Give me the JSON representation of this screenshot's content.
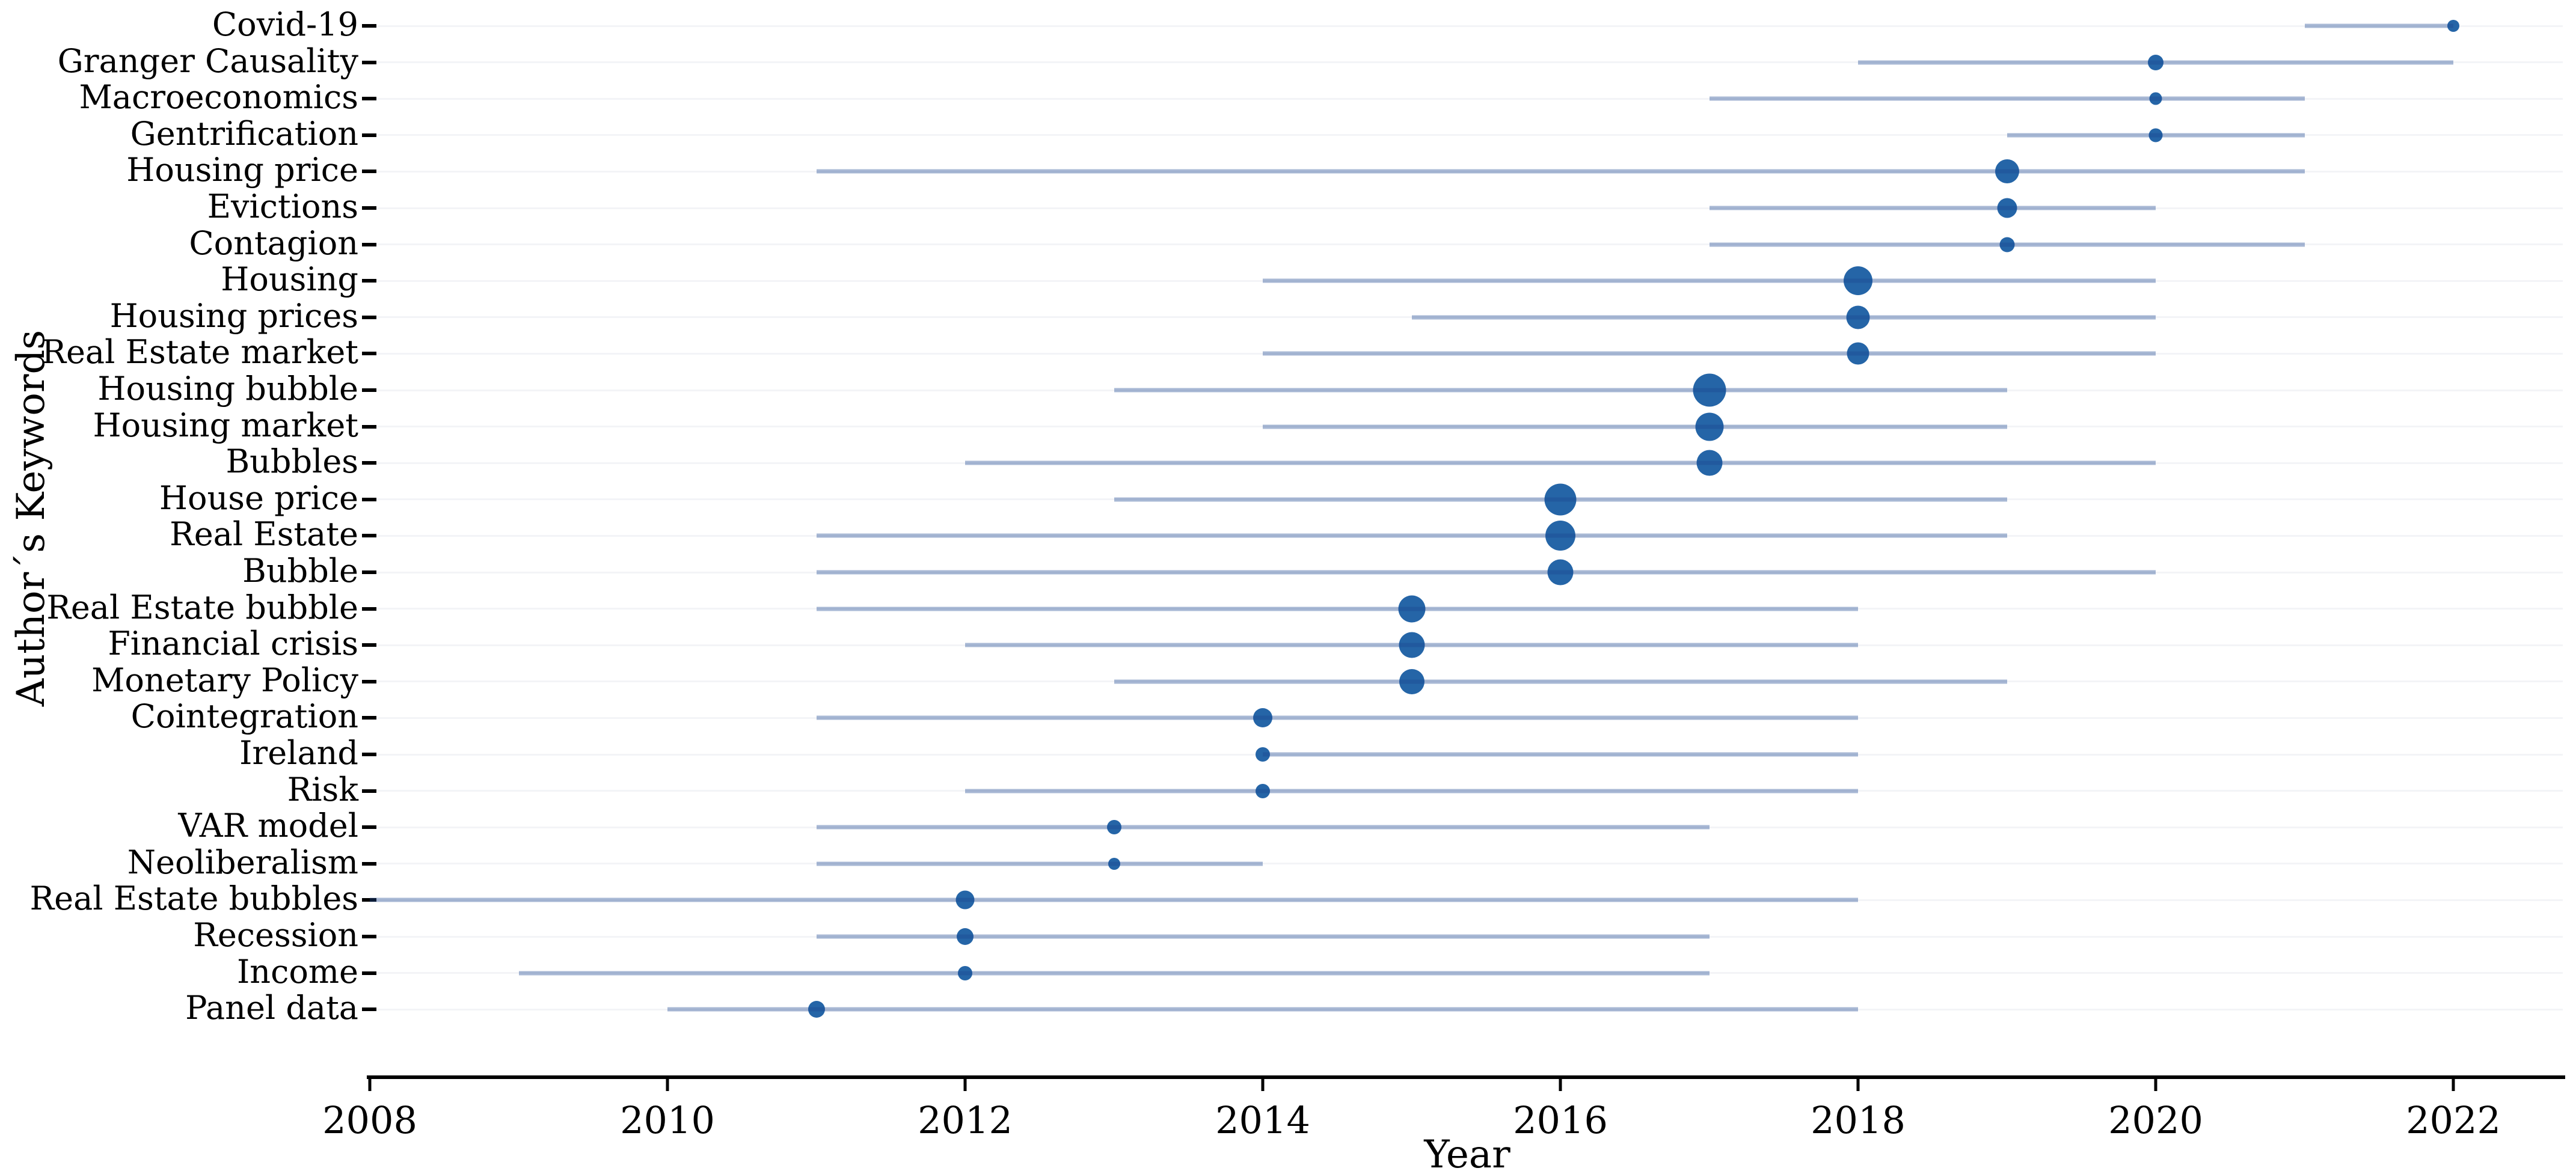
{
  "figure": {
    "x_axis_title": "Year",
    "y_axis_title": "Author´s Keywords"
  },
  "style": {
    "background_color": "#ffffff",
    "dot_color": "#2565A7",
    "line_color": "#1C4690",
    "line_opacity": 0.38,
    "axis_color": "#000000",
    "gridline_color": "#f3f4f7",
    "text_color": "#000000"
  },
  "chart_data": {
    "type": "scatter",
    "subtype": "trend-topics-dot-range-timeline",
    "title": "",
    "xlabel": "Year",
    "ylabel": "Author´s Keywords",
    "xlim": [
      2007.5,
      2022.8
    ],
    "x_ticks": [
      "2008",
      "2010",
      "2012",
      "2014",
      "2016",
      "2018",
      "2020",
      "2022"
    ],
    "grid": "faint horizontal row guides",
    "legend": "none",
    "size_note": "dot_size_px is the rendered bubble diameter; larger dot = higher keyword frequency",
    "keywords": [
      {
        "label": "Covid-19",
        "year_start": 2021,
        "year_end": 2022,
        "peak_year": 2022,
        "dot_size_px": 20
      },
      {
        "label": "Granger Causality",
        "year_start": 2018,
        "year_end": 2022,
        "peak_year": 2020,
        "dot_size_px": 26
      },
      {
        "label": "Macroeconomics",
        "year_start": 2017,
        "year_end": 2021,
        "peak_year": 2020,
        "dot_size_px": 21
      },
      {
        "label": "Gentrification",
        "year_start": 2019,
        "year_end": 2021,
        "peak_year": 2020,
        "dot_size_px": 23
      },
      {
        "label": "Housing price",
        "year_start": 2011,
        "year_end": 2021,
        "peak_year": 2019,
        "dot_size_px": 40
      },
      {
        "label": "Evictions",
        "year_start": 2017,
        "year_end": 2020,
        "peak_year": 2019,
        "dot_size_px": 33
      },
      {
        "label": "Contagion",
        "year_start": 2017,
        "year_end": 2021,
        "peak_year": 2019,
        "dot_size_px": 25
      },
      {
        "label": "Housing",
        "year_start": 2014,
        "year_end": 2020,
        "peak_year": 2018,
        "dot_size_px": 48
      },
      {
        "label": "Housing prices",
        "year_start": 2015,
        "year_end": 2020,
        "peak_year": 2018,
        "dot_size_px": 39
      },
      {
        "label": "Real Estate market",
        "year_start": 2014,
        "year_end": 2020,
        "peak_year": 2018,
        "dot_size_px": 37
      },
      {
        "label": "Housing bubble",
        "year_start": 2013,
        "year_end": 2019,
        "peak_year": 2017,
        "dot_size_px": 55
      },
      {
        "label": "Housing market",
        "year_start": 2014,
        "year_end": 2019,
        "peak_year": 2017,
        "dot_size_px": 47
      },
      {
        "label": "Bubbles",
        "year_start": 2012,
        "year_end": 2020,
        "peak_year": 2017,
        "dot_size_px": 43
      },
      {
        "label": "House price",
        "year_start": 2013,
        "year_end": 2019,
        "peak_year": 2016,
        "dot_size_px": 53
      },
      {
        "label": "Real Estate",
        "year_start": 2011,
        "year_end": 2019,
        "peak_year": 2016,
        "dot_size_px": 50
      },
      {
        "label": "Bubble",
        "year_start": 2011,
        "year_end": 2020,
        "peak_year": 2016,
        "dot_size_px": 43
      },
      {
        "label": "Real Estate bubble",
        "year_start": 2011,
        "year_end": 2018,
        "peak_year": 2015,
        "dot_size_px": 45
      },
      {
        "label": "Financial crisis",
        "year_start": 2012,
        "year_end": 2018,
        "peak_year": 2015,
        "dot_size_px": 43
      },
      {
        "label": "Monetary Policy",
        "year_start": 2013,
        "year_end": 2019,
        "peak_year": 2015,
        "dot_size_px": 42
      },
      {
        "label": "Cointegration",
        "year_start": 2011,
        "year_end": 2018,
        "peak_year": 2014,
        "dot_size_px": 32
      },
      {
        "label": "Ireland",
        "year_start": 2014,
        "year_end": 2018,
        "peak_year": 2014,
        "dot_size_px": 24
      },
      {
        "label": "Risk",
        "year_start": 2012,
        "year_end": 2018,
        "peak_year": 2014,
        "dot_size_px": 24
      },
      {
        "label": "VAR model",
        "year_start": 2011,
        "year_end": 2017,
        "peak_year": 2013,
        "dot_size_px": 24
      },
      {
        "label": "Neoliberalism",
        "year_start": 2011,
        "year_end": 2014,
        "peak_year": 2013,
        "dot_size_px": 20
      },
      {
        "label": "Real Estate bubbles",
        "year_start": 2008,
        "year_end": 2018,
        "peak_year": 2012,
        "dot_size_px": 31
      },
      {
        "label": "Recession",
        "year_start": 2011,
        "year_end": 2017,
        "peak_year": 2012,
        "dot_size_px": 28
      },
      {
        "label": "Income",
        "year_start": 2009,
        "year_end": 2017,
        "peak_year": 2012,
        "dot_size_px": 24
      },
      {
        "label": "Panel data",
        "year_start": 2010,
        "year_end": 2018,
        "peak_year": 2011,
        "dot_size_px": 28
      }
    ]
  }
}
